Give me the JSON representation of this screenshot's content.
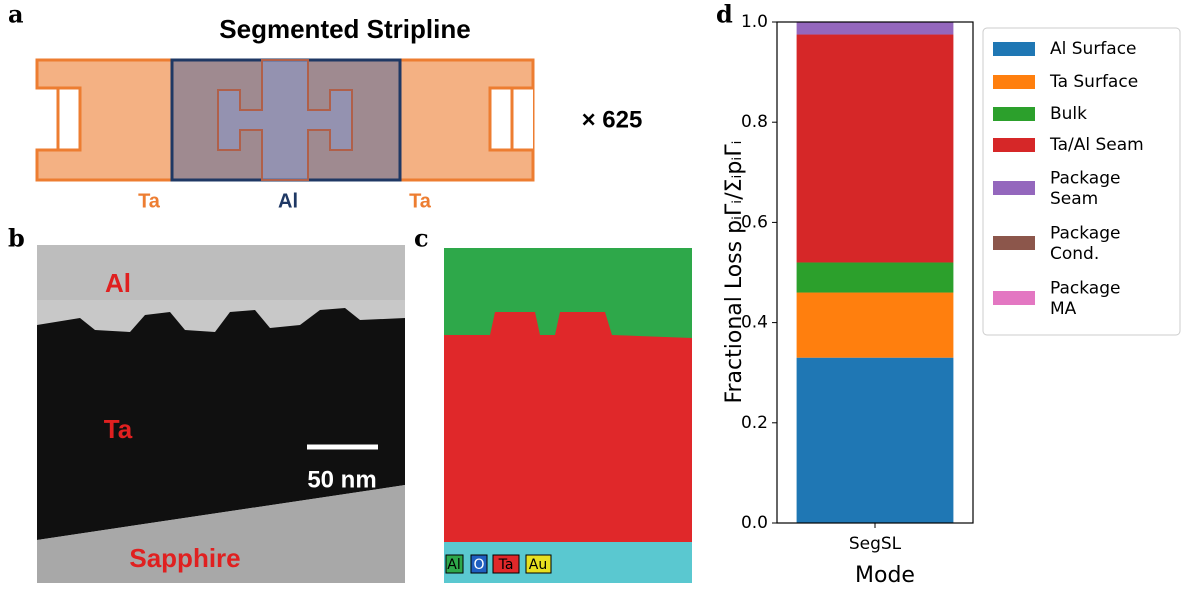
{
  "panel_labels": [
    "a",
    "b",
    "c",
    "d"
  ],
  "diagram": {
    "title": "Segmented Stripline",
    "multiplier": "× 625",
    "labels": [
      "Ta",
      "Al",
      "Ta"
    ]
  },
  "tem_image": {
    "labels": [
      "Al",
      "Ta",
      "Sapphire"
    ],
    "scale_bar": "50 nm"
  },
  "eds_map": {
    "legend": [
      "Al",
      "O",
      "Ta",
      "Au"
    ]
  },
  "chart_data": {
    "type": "stacked_bar",
    "categories": [
      "SegSL"
    ],
    "xlabel": "Mode",
    "ylabel": "Fractional Loss pᵢΓᵢ/ΣᵢpᵢΓᵢ",
    "series": [
      {
        "name": "Al Surface",
        "color": "#1f77b4",
        "values": [
          0.33
        ]
      },
      {
        "name": "Ta Surface",
        "color": "#ff7f0e",
        "values": [
          0.13
        ]
      },
      {
        "name": "Bulk",
        "color": "#2ca02c",
        "values": [
          0.06
        ]
      },
      {
        "name": "Ta/Al Seam",
        "color": "#d62728",
        "values": [
          0.455
        ]
      },
      {
        "name": "Package\nSeam",
        "color": "#9467bd",
        "values": [
          0.025
        ]
      },
      {
        "name": "Package\nCond.",
        "color": "#8c564b",
        "values": [
          0
        ]
      },
      {
        "name": "Package\nMA",
        "color": "#e377c2",
        "values": [
          0
        ]
      }
    ],
    "ylim": [
      0,
      1
    ],
    "yticks": [
      {
        "value": 0,
        "label": "0.0"
      },
      0.2,
      0.4,
      0.6,
      0.8,
      {
        "value": 1,
        "label": "1.0"
      }
    ]
  }
}
